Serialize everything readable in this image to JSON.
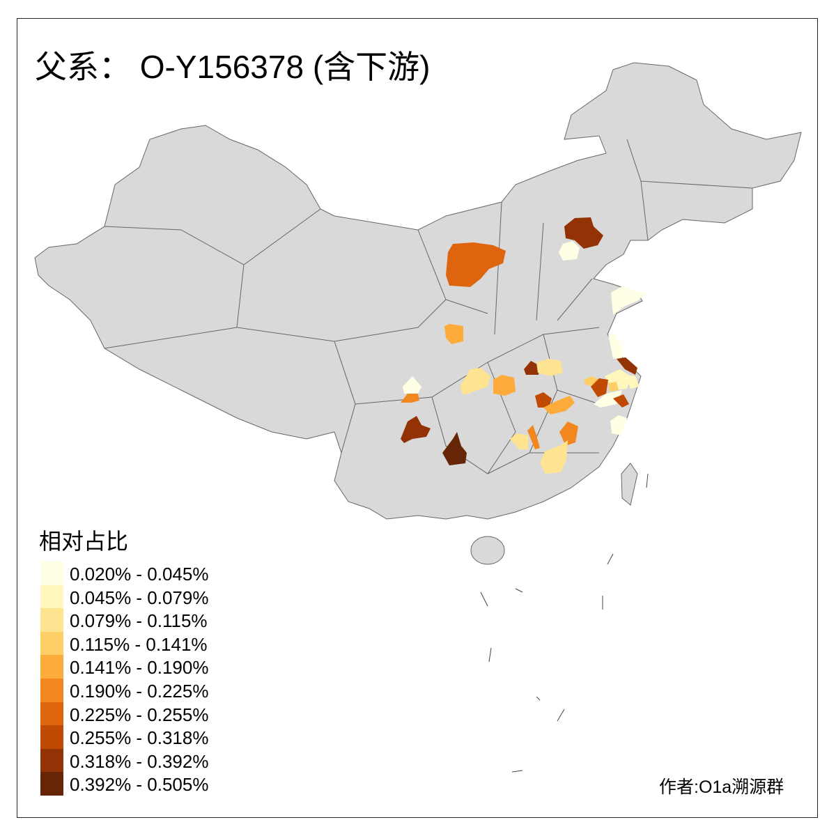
{
  "title": "父系： O-Y156378 (含下游)",
  "legend": {
    "title": "相对占比",
    "items": [
      {
        "label": "0.020% - 0.045%",
        "color": "#FFFFE5"
      },
      {
        "label": "0.045% - 0.079%",
        "color": "#FFF7BC"
      },
      {
        "label": "0.079% - 0.115%",
        "color": "#FEE391"
      },
      {
        "label": "0.115% - 0.141%",
        "color": "#FECF66"
      },
      {
        "label": "0.141% - 0.190%",
        "color": "#FDAB3B"
      },
      {
        "label": "0.190% - 0.225%",
        "color": "#F3871F"
      },
      {
        "label": "0.225% - 0.255%",
        "color": "#DF640E"
      },
      {
        "label": "0.255% - 0.318%",
        "color": "#C04A02"
      },
      {
        "label": "0.318% - 0.392%",
        "color": "#933204"
      },
      {
        "label": "0.392% - 0.505%",
        "color": "#662506"
      }
    ]
  },
  "map": {
    "base_color": "#D9D9D9",
    "border_color": "#666666",
    "no_data": "gray"
  },
  "credit": "作者:O1a溯源群"
}
